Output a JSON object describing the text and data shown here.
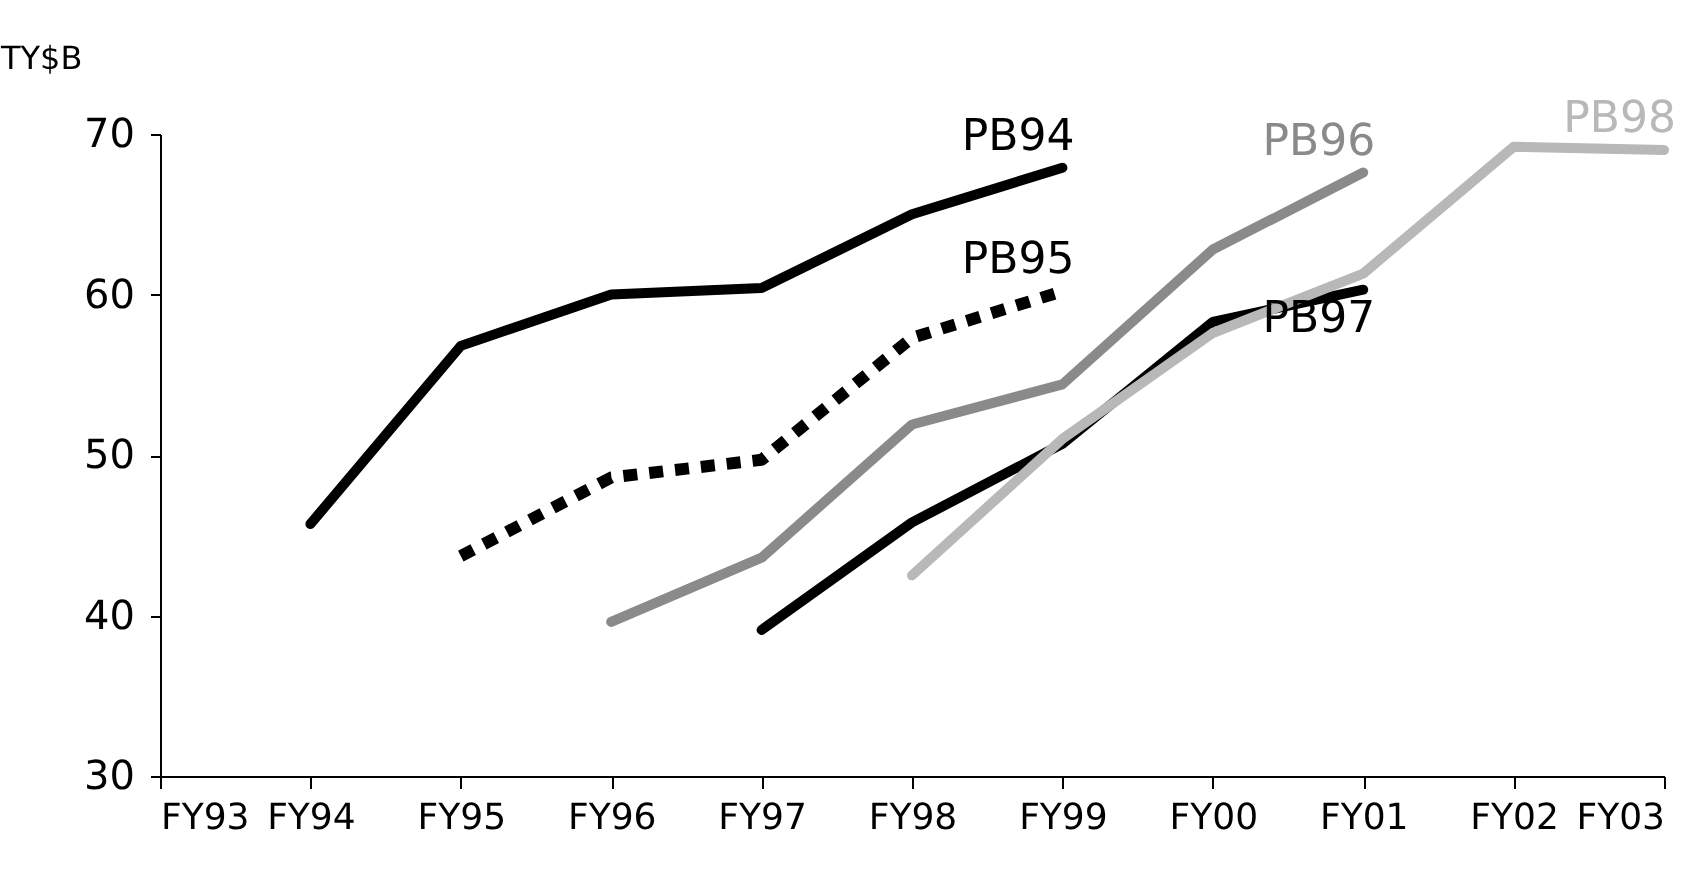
{
  "chart_data": {
    "type": "line",
    "ylabel": "TY$B",
    "categories": [
      "FY93",
      "FY94",
      "FY95",
      "FY96",
      "FY97",
      "FY98",
      "FY99",
      "FY00",
      "FY01",
      "FY02",
      "FY03"
    ],
    "ylim": [
      30,
      70
    ],
    "yticks": [
      30,
      40,
      50,
      60,
      70
    ],
    "grid": false,
    "series": [
      {
        "name": "PB94",
        "color": "#000000",
        "line_style": "solid",
        "values": [
          null,
          45.7,
          56.8,
          60.0,
          60.4,
          65.0,
          67.9,
          null,
          null,
          null,
          null
        ]
      },
      {
        "name": "PB95",
        "color": "#000000",
        "line_style": "dotted",
        "values": [
          null,
          null,
          43.7,
          48.6,
          49.7,
          57.3,
          60.2,
          null,
          null,
          null,
          null
        ]
      },
      {
        "name": "PB96",
        "color": "#8a8a8a",
        "line_style": "solid",
        "values": [
          null,
          null,
          null,
          39.6,
          43.6,
          51.9,
          54.4,
          62.8,
          67.6,
          null,
          null
        ]
      },
      {
        "name": "PB97",
        "color": "#000000",
        "line_style": "solid",
        "values": [
          null,
          null,
          null,
          null,
          39.1,
          45.8,
          50.7,
          58.3,
          60.3,
          null,
          null
        ]
      },
      {
        "name": "PB98",
        "color": "#b8b8b8",
        "line_style": "solid",
        "values": [
          null,
          null,
          null,
          null,
          null,
          42.5,
          51.0,
          57.6,
          61.3,
          69.2,
          69.0
        ]
      }
    ]
  }
}
